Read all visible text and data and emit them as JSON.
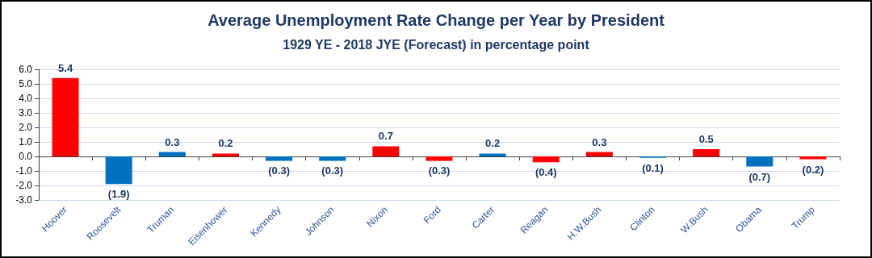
{
  "chart_data": {
    "type": "bar",
    "title": "Average Unemployment Rate Change per Year by President",
    "subtitle": "1929 YE - 2018 JYE (Forecast) in percentage point",
    "categories": [
      "Hoover",
      "Roosevelt",
      "Truman",
      "Eisenhower",
      "Kennedy",
      "Johnson",
      "Nixon",
      "Ford",
      "Carter",
      "Reagan",
      "H.W.Bush",
      "Clinton",
      "W.Bush",
      "Obama",
      "Trump"
    ],
    "values": [
      5.4,
      -1.9,
      0.3,
      0.2,
      -0.3,
      -0.3,
      0.7,
      -0.3,
      0.2,
      -0.4,
      0.3,
      -0.1,
      0.5,
      -0.7,
      -0.2
    ],
    "colors": [
      "#ff0000",
      "#0070c0",
      "#0070c0",
      "#ff0000",
      "#0070c0",
      "#0070c0",
      "#ff0000",
      "#ff0000",
      "#0070c0",
      "#ff0000",
      "#ff0000",
      "#0070c0",
      "#ff0000",
      "#0070c0",
      "#ff0000"
    ],
    "value_labels": [
      "5.4",
      "(1.9)",
      "0.3",
      "0.2",
      "(0.3)",
      "(0.3)",
      "0.7",
      "(0.3)",
      "0.2",
      "(0.4)",
      "0.3",
      "(0.1)",
      "0.5",
      "(0.7)",
      "(0.2)"
    ],
    "ylim": [
      -3,
      6
    ],
    "yticks": [
      {
        "value": -3,
        "label": "-3.0"
      },
      {
        "value": -2,
        "label": "-2.0"
      },
      {
        "value": -1,
        "label": "-1.0"
      },
      {
        "value": 0,
        "label": "0.0"
      },
      {
        "value": 1,
        "label": "1.0"
      },
      {
        "value": 2,
        "label": "2.0"
      },
      {
        "value": 3,
        "label": "3.0"
      },
      {
        "value": 4,
        "label": "4.0"
      },
      {
        "value": 5,
        "label": "5.0"
      },
      {
        "value": 6,
        "label": "6.0"
      }
    ],
    "grid": "y"
  }
}
